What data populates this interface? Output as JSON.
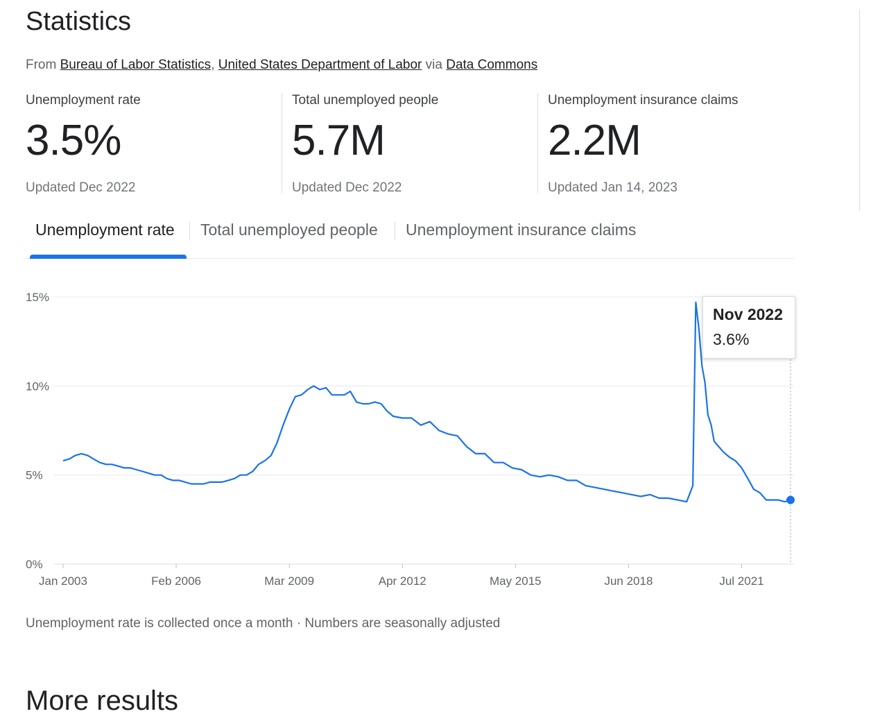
{
  "header": {
    "title": "Statistics",
    "from_label": "From",
    "source1": "Bureau of Labor Statistics",
    "comma": ",",
    "source2": "United States Department of Labor",
    "via_label": "via",
    "source3": "Data Commons"
  },
  "stats": [
    {
      "label": "Unemployment rate",
      "value": "3.5%",
      "updated": "Updated Dec 2022"
    },
    {
      "label": "Total unemployed people",
      "value": "5.7M",
      "updated": "Updated Dec 2022"
    },
    {
      "label": "Unemployment insurance claims",
      "value": "2.2M",
      "updated": "Updated Jan 14, 2023"
    }
  ],
  "tabs": [
    {
      "label": "Unemployment rate",
      "active": true
    },
    {
      "label": "Total unemployed people",
      "active": false
    },
    {
      "label": "Unemployment insurance claims",
      "active": false
    }
  ],
  "tooltip": {
    "date": "Nov 2022",
    "value": "3.6%"
  },
  "footnote": "Unemployment rate is collected once a month · Numbers are seasonally adjusted",
  "more_heading": "More results",
  "colors": {
    "line": "#1a73e8",
    "grid": "#e8eaed",
    "text": "#5f6368"
  },
  "chart_data": {
    "type": "line",
    "title": "Unemployment rate",
    "xlabel": "",
    "ylabel": "",
    "ylim": [
      0,
      15
    ],
    "y_ticks": [
      0,
      5,
      10,
      15
    ],
    "y_tick_labels": [
      "0%",
      "5%",
      "10%",
      "15%"
    ],
    "x_ticks": [
      2003.0,
      2006.083,
      2009.167,
      2012.25,
      2015.333,
      2018.417,
      2021.5
    ],
    "x_tick_labels": [
      "Jan 2003",
      "Feb 2006",
      "Mar 2009",
      "Apr 2012",
      "May 2015",
      "Jun 2018",
      "Jul 2021"
    ],
    "xlim": [
      2003.0,
      2022.833
    ],
    "highlight": {
      "x": 2022.833,
      "y": 3.6,
      "label": "Nov 2022"
    },
    "series": [
      {
        "name": "Unemployment rate (%)",
        "x": [
          2003.0,
          2003.17,
          2003.33,
          2003.5,
          2003.67,
          2003.83,
          2004.0,
          2004.17,
          2004.33,
          2004.5,
          2004.67,
          2004.83,
          2005.0,
          2005.17,
          2005.33,
          2005.5,
          2005.67,
          2005.83,
          2006.0,
          2006.17,
          2006.33,
          2006.5,
          2006.67,
          2006.83,
          2007.0,
          2007.17,
          2007.33,
          2007.5,
          2007.67,
          2007.83,
          2008.0,
          2008.17,
          2008.33,
          2008.5,
          2008.67,
          2008.83,
          2009.0,
          2009.17,
          2009.33,
          2009.5,
          2009.67,
          2009.83,
          2010.0,
          2010.17,
          2010.33,
          2010.5,
          2010.67,
          2010.83,
          2011.0,
          2011.17,
          2011.33,
          2011.5,
          2011.67,
          2011.83,
          2012.0,
          2012.25,
          2012.5,
          2012.75,
          2013.0,
          2013.25,
          2013.5,
          2013.75,
          2014.0,
          2014.25,
          2014.5,
          2014.75,
          2015.0,
          2015.25,
          2015.5,
          2015.75,
          2016.0,
          2016.25,
          2016.5,
          2016.75,
          2017.0,
          2017.25,
          2017.5,
          2017.75,
          2018.0,
          2018.25,
          2018.5,
          2018.75,
          2019.0,
          2019.25,
          2019.5,
          2019.75,
          2020.0,
          2020.17,
          2020.25,
          2020.33,
          2020.42,
          2020.5,
          2020.58,
          2020.67,
          2020.75,
          2020.83,
          2021.0,
          2021.17,
          2021.33,
          2021.5,
          2021.67,
          2021.83,
          2022.0,
          2022.17,
          2022.33,
          2022.5,
          2022.67,
          2022.833
        ],
        "y": [
          5.8,
          5.9,
          6.1,
          6.2,
          6.1,
          5.9,
          5.7,
          5.6,
          5.6,
          5.5,
          5.4,
          5.4,
          5.3,
          5.2,
          5.1,
          5.0,
          5.0,
          4.8,
          4.7,
          4.7,
          4.6,
          4.5,
          4.5,
          4.5,
          4.6,
          4.6,
          4.6,
          4.7,
          4.8,
          5.0,
          5.0,
          5.2,
          5.6,
          5.8,
          6.1,
          6.8,
          7.8,
          8.7,
          9.4,
          9.5,
          9.8,
          10.0,
          9.8,
          9.9,
          9.5,
          9.5,
          9.5,
          9.7,
          9.1,
          9.0,
          9.0,
          9.1,
          9.0,
          8.6,
          8.3,
          8.2,
          8.2,
          7.8,
          8.0,
          7.5,
          7.3,
          7.2,
          6.6,
          6.2,
          6.2,
          5.7,
          5.7,
          5.4,
          5.3,
          5.0,
          4.9,
          5.0,
          4.9,
          4.7,
          4.7,
          4.4,
          4.3,
          4.2,
          4.1,
          4.0,
          3.9,
          3.8,
          3.9,
          3.7,
          3.7,
          3.6,
          3.5,
          4.4,
          14.7,
          13.3,
          11.1,
          10.2,
          8.4,
          7.8,
          6.9,
          6.7,
          6.3,
          6.0,
          5.8,
          5.4,
          4.8,
          4.2,
          4.0,
          3.6,
          3.6,
          3.6,
          3.5,
          3.6
        ]
      }
    ]
  }
}
